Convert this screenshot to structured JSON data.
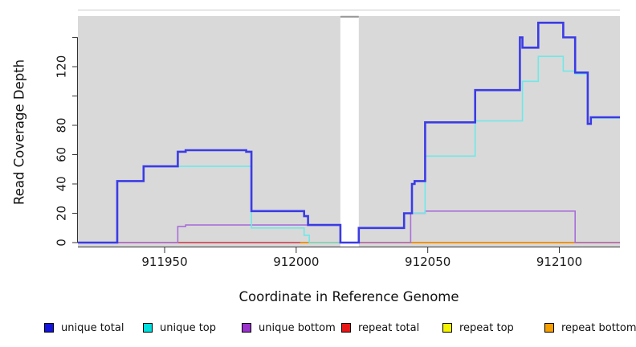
{
  "figure": {
    "plot_bg_color": "#d9d9d9",
    "axis_color": "#333333",
    "masked_gap_color": "#ffffff",
    "masked_gap_cap_color": "#999999"
  },
  "chart_data": {
    "type": "line",
    "subtype": "step",
    "title": "",
    "xlabel": "Coordinate in Reference Genome",
    "ylabel": "Read Coverage Depth",
    "xlim": [
      911917,
      912123
    ],
    "ylim": [
      0,
      150
    ],
    "grid": false,
    "legend_position": "bottom",
    "x_ticks": [
      {
        "value": 911950,
        "label": "911950"
      },
      {
        "value": 912000,
        "label": "912000"
      },
      {
        "value": 912050,
        "label": "912050"
      },
      {
        "value": 912100,
        "label": "912100"
      }
    ],
    "y_ticks": [
      {
        "value": 0,
        "label": "0"
      },
      {
        "value": 20,
        "label": "20"
      },
      {
        "value": 40,
        "label": "40"
      },
      {
        "value": 60,
        "label": "60"
      },
      {
        "value": 80,
        "label": "80"
      },
      {
        "value": 100,
        "label": ""
      },
      {
        "value": 120,
        "label": "120"
      },
      {
        "value": 140,
        "label": ""
      }
    ],
    "masked_region": {
      "x_start": 912016.8,
      "x_end": 912023.8
    },
    "series": [
      {
        "name": "unique total",
        "color": "#3b3be6",
        "line_width": 2.6,
        "z": 6,
        "step_points": [
          [
            911917,
            0
          ],
          [
            911932,
            42
          ],
          [
            911942,
            52
          ],
          [
            911955,
            62
          ],
          [
            911958,
            63
          ],
          [
            911981,
            62
          ],
          [
            911983,
            21.5
          ],
          [
            912003,
            18
          ],
          [
            912004.5,
            12
          ],
          [
            912016.8,
            0
          ],
          [
            912023.8,
            10
          ],
          [
            912041,
            20
          ],
          [
            912044,
            40
          ],
          [
            912045,
            42
          ],
          [
            912049,
            82
          ],
          [
            912068,
            104
          ],
          [
            912085,
            140
          ],
          [
            912086,
            133
          ],
          [
            912092,
            150
          ],
          [
            912101.5,
            140
          ],
          [
            912106,
            116
          ],
          [
            912110.8,
            81
          ],
          [
            912112,
            85.5
          ]
        ]
      },
      {
        "name": "unique top",
        "color": "#6fe8e8",
        "line_width": 1.6,
        "z": 5,
        "step_points": [
          [
            911917,
            0
          ],
          [
            911932,
            42
          ],
          [
            911942,
            52
          ],
          [
            911983,
            10
          ],
          [
            912003,
            5
          ],
          [
            912005,
            0
          ],
          [
            912023.8,
            10
          ],
          [
            912041,
            20
          ],
          [
            912049,
            59
          ],
          [
            912068,
            83
          ],
          [
            912086,
            110
          ],
          [
            912092,
            127
          ],
          [
            912101.5,
            117
          ],
          [
            912106,
            115
          ],
          [
            912110.8,
            81
          ],
          [
            912112,
            85
          ]
        ]
      },
      {
        "name": "unique bottom",
        "color": "#a86fd8",
        "line_width": 1.6,
        "z": 4,
        "step_points": [
          [
            911917,
            0
          ],
          [
            911955,
            11
          ],
          [
            911958,
            12
          ],
          [
            912016.8,
            0
          ],
          [
            912043.5,
            20
          ],
          [
            912049,
            21.5
          ],
          [
            912106,
            0
          ]
        ]
      },
      {
        "name": "repeat total",
        "color": "#cc3355",
        "line_width": 1.5,
        "z": 2,
        "step_points": [
          [
            911917,
            0
          ]
        ]
      },
      {
        "name": "repeat top",
        "color": "#e8e800",
        "line_width": 1.2,
        "z": 1,
        "step_points": [
          [
            911917,
            0
          ]
        ]
      },
      {
        "name": "repeat bottom",
        "color": "#f59300",
        "line_width": 1.8,
        "z": 3,
        "visible_from_x": 912001.5,
        "step_points": [
          [
            911917,
            0
          ]
        ]
      }
    ]
  },
  "legend": {
    "items": [
      {
        "label": "unique total",
        "color": "#1414dd"
      },
      {
        "label": "unique top",
        "color": "#00dede"
      },
      {
        "label": "unique bottom",
        "color": "#9933cc"
      },
      {
        "label": "repeat total",
        "color": "#e81717"
      },
      {
        "label": "repeat top",
        "color": "#f5f500"
      },
      {
        "label": "repeat bottom",
        "color": "#f5a000"
      }
    ]
  }
}
